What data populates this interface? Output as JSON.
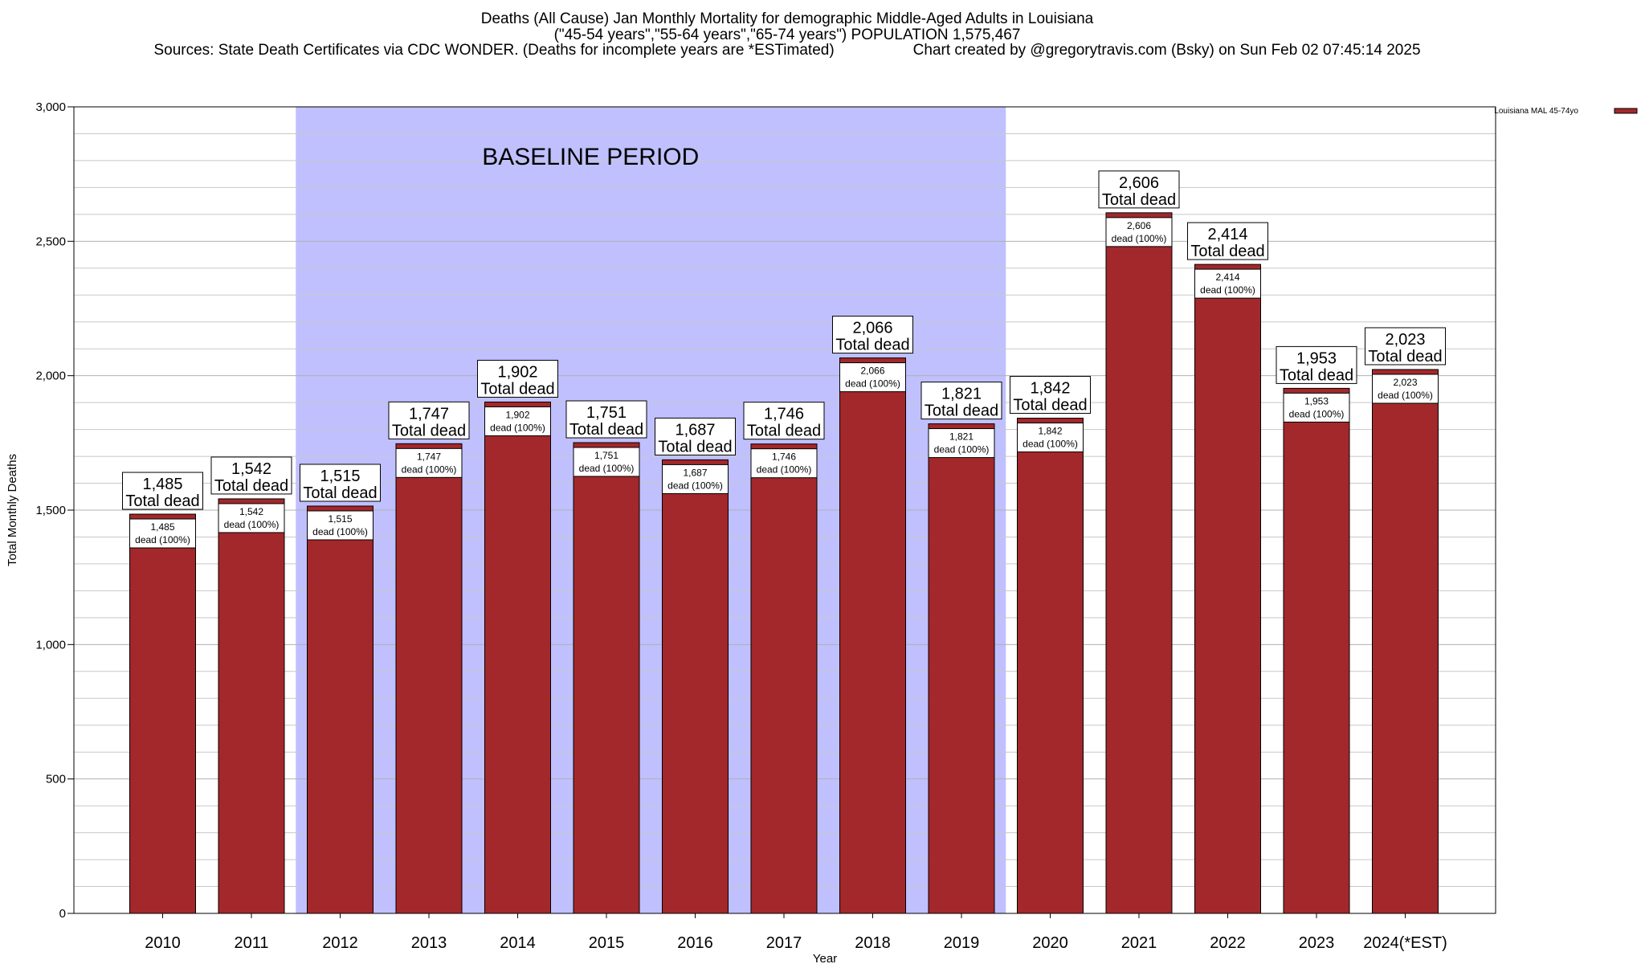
{
  "title": {
    "line1": "Deaths (All Cause) Jan Monthly Mortality for demographic Middle-Aged Adults in Louisiana",
    "line2": "(\"45-54 years\",\"55-64 years\",\"65-74 years\") POPULATION 1,575,467",
    "line3_source": "Sources: State Death Certificates via CDC WONDER. (Deaths for incomplete years are *ESTimated)",
    "line3_credit": "Chart created by @gregorytravis.com (Bsky) on Sun Feb 02 07:45:14 2025"
  },
  "colors": {
    "bar": "#a3282b",
    "baseline": "#c0c0ff",
    "grid": "#c8c8c8"
  },
  "chart_data": {
    "type": "bar",
    "title": "Deaths (All Cause) Jan Monthly Mortality for demographic Middle-Aged Adults in Louisiana",
    "xlabel": "Year",
    "ylabel": "Total Monthly Deaths",
    "ylim": [
      0,
      3000
    ],
    "yticks": [
      0,
      500,
      1000,
      1500,
      2000,
      2500,
      3000
    ],
    "ytick_labels": [
      "0",
      "500",
      "1,000",
      "1,500",
      "2,000",
      "2,500",
      "3,000"
    ],
    "minor_step": 100,
    "grid": true,
    "legend": {
      "label": "Louisiana MAL 45-74yo",
      "position": "top-right"
    },
    "baseline": {
      "label": "BASELINE PERIOD",
      "from": "2012",
      "to": "2019"
    },
    "categories": [
      "2010",
      "2011",
      "2012",
      "2013",
      "2014",
      "2015",
      "2016",
      "2017",
      "2018",
      "2019",
      "2020",
      "2021",
      "2022",
      "2023",
      "2024(*EST)"
    ],
    "values": [
      1485,
      1542,
      1515,
      1747,
      1902,
      1751,
      1687,
      1746,
      2066,
      1821,
      1842,
      2606,
      2414,
      1953,
      2023
    ],
    "top_labels": [
      "1,485",
      "1,542",
      "1,515",
      "1,747",
      "1,902",
      "1,751",
      "1,687",
      "1,746",
      "2,066",
      "1,821",
      "1,842",
      "2,606",
      "2,414",
      "1,953",
      "2,023"
    ],
    "total_label": "Total dead",
    "inner_label_suffix": "dead (100%)"
  }
}
